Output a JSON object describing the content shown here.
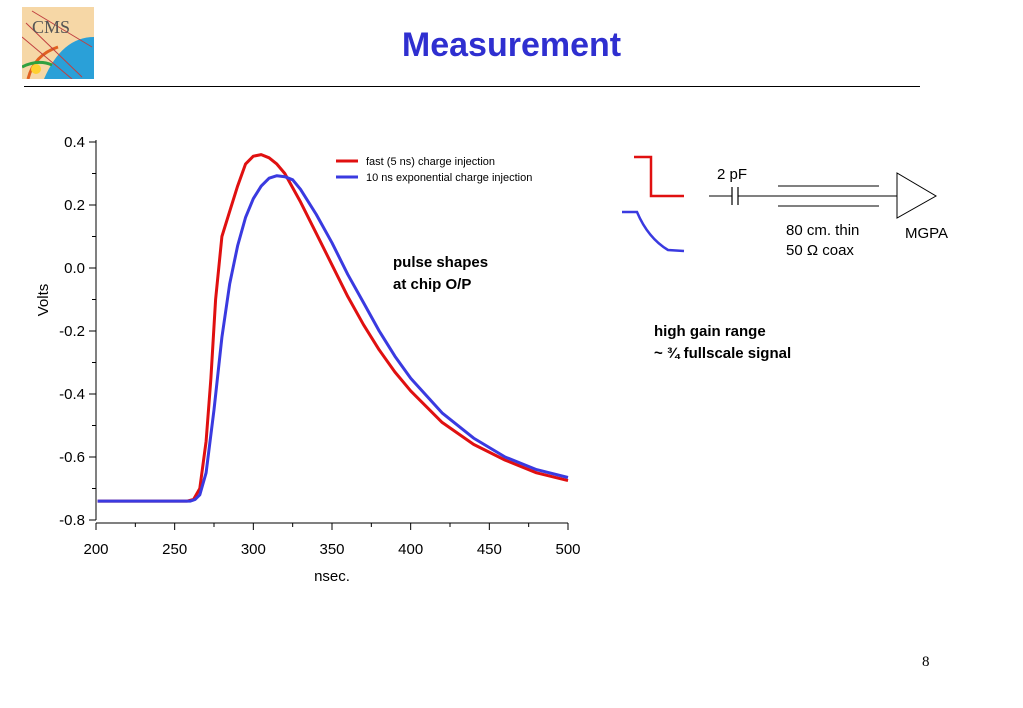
{
  "slide": {
    "title": "Measurement",
    "page_number": "8",
    "logo_text": "CMS"
  },
  "annotations": {
    "pulse_shapes": [
      "pulse shapes",
      "at chip O/P"
    ],
    "high_gain": [
      "high gain range",
      "~ ¾ fullscale signal"
    ]
  },
  "schematic": {
    "capacitor_label": "2 pF",
    "coax_label": [
      "80 cm. thin",
      "50 Ω coax"
    ],
    "amplifier_label": "MGPA"
  },
  "colors": {
    "title": "#2f2fd0",
    "series_fast": "#e01010",
    "series_slow": "#3a3ae0"
  },
  "chart_data": {
    "type": "line",
    "title": "",
    "xlabel": "nsec.",
    "ylabel": "Volts",
    "xlim": [
      200,
      500
    ],
    "ylim": [
      -0.8,
      0.4
    ],
    "xticks": [
      "200",
      "250",
      "300",
      "350",
      "400",
      "450",
      "500"
    ],
    "yticks": [
      "0.4",
      "0.2",
      "0.0",
      "-0.2",
      "-0.4",
      "-0.6",
      "-0.8"
    ],
    "legend_position": "top-right",
    "series": [
      {
        "name": "fast (5 ns) charge injection",
        "color": "#e01010",
        "x": [
          201,
          220,
          240,
          258,
          262,
          266,
          270,
          273,
          276,
          280,
          285,
          290,
          295,
          300,
          305,
          310,
          315,
          320,
          330,
          340,
          350,
          360,
          370,
          380,
          390,
          400,
          420,
          440,
          460,
          480,
          500
        ],
        "y": [
          -0.74,
          -0.74,
          -0.74,
          -0.74,
          -0.735,
          -0.7,
          -0.55,
          -0.35,
          -0.1,
          0.1,
          0.18,
          0.26,
          0.33,
          0.355,
          0.36,
          0.35,
          0.33,
          0.3,
          0.21,
          0.11,
          0.01,
          -0.09,
          -0.18,
          -0.26,
          -0.33,
          -0.39,
          -0.49,
          -0.56,
          -0.61,
          -0.65,
          -0.675
        ]
      },
      {
        "name": "10 ns exponential charge injection",
        "color": "#3a3ae0",
        "x": [
          201,
          220,
          240,
          260,
          263,
          266,
          270,
          275,
          280,
          285,
          290,
          295,
          300,
          305,
          310,
          315,
          320,
          325,
          330,
          340,
          350,
          360,
          370,
          380,
          390,
          400,
          420,
          440,
          460,
          480,
          500
        ],
        "y": [
          -0.74,
          -0.74,
          -0.74,
          -0.74,
          -0.735,
          -0.72,
          -0.65,
          -0.45,
          -0.22,
          -0.05,
          0.07,
          0.16,
          0.22,
          0.26,
          0.285,
          0.293,
          0.29,
          0.28,
          0.25,
          0.17,
          0.08,
          -0.02,
          -0.11,
          -0.2,
          -0.28,
          -0.35,
          -0.46,
          -0.54,
          -0.6,
          -0.64,
          -0.665
        ]
      }
    ]
  }
}
